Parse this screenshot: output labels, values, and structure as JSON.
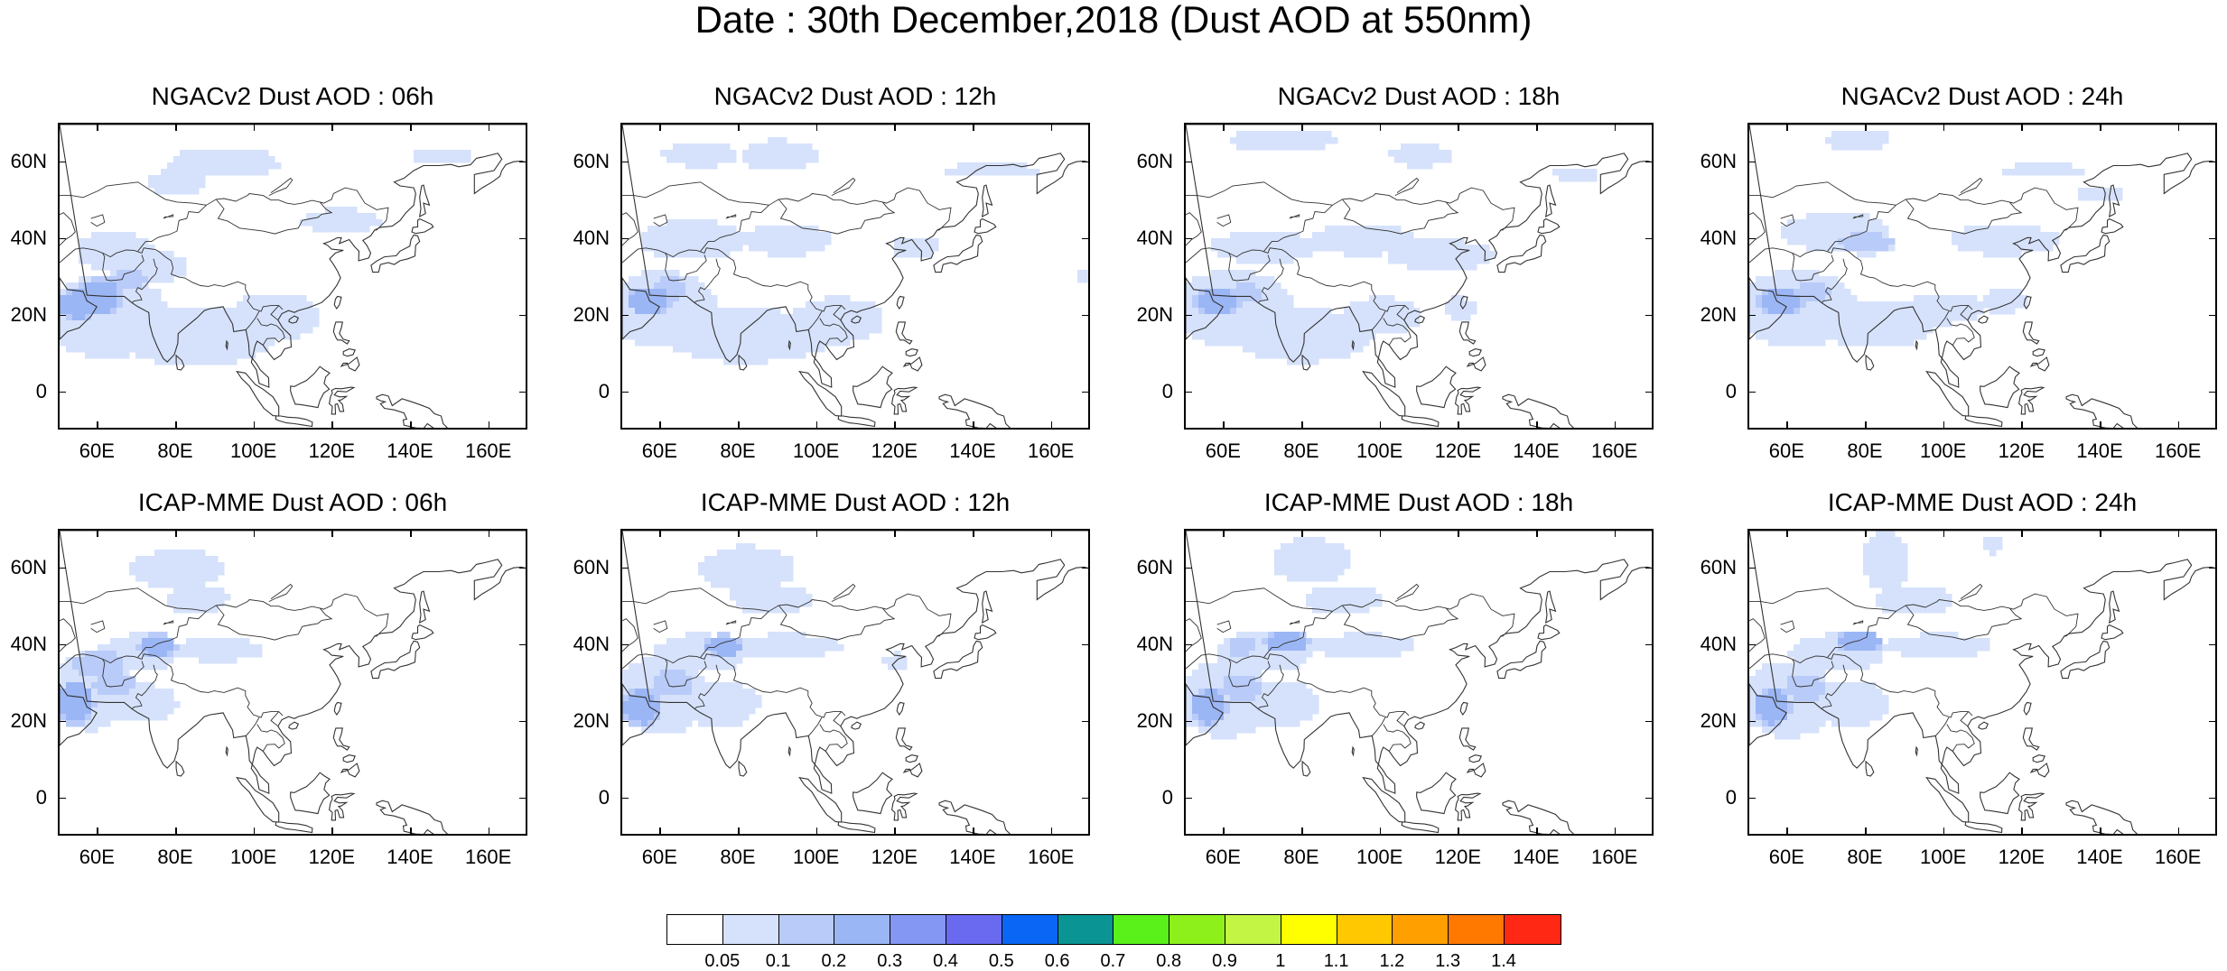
{
  "figure": {
    "title": "Date : 30th December,2018 (Dust AOD at 550nm)"
  },
  "chart_data": {
    "type": "map-panels",
    "lat_labels": [
      "60N",
      "40N",
      "20N",
      "0"
    ],
    "lon_labels": [
      "60E",
      "80E",
      "100E",
      "120E",
      "140E",
      "160E"
    ],
    "lat_range": [
      -10,
      70
    ],
    "lon_range": [
      50,
      170
    ],
    "panels": [
      {
        "title": "NGACv2 Dust AOD : 06h",
        "model": "NGACv2",
        "hour": "06h"
      },
      {
        "title": "NGACv2 Dust AOD : 12h",
        "model": "NGACv2",
        "hour": "12h"
      },
      {
        "title": "NGACv2 Dust AOD : 18h",
        "model": "NGACv2",
        "hour": "18h"
      },
      {
        "title": "NGACv2 Dust AOD : 24h",
        "model": "NGACv2",
        "hour": "24h"
      },
      {
        "title": "ICAP-MME Dust AOD : 06h",
        "model": "ICAP-MME",
        "hour": "06h"
      },
      {
        "title": "ICAP-MME Dust AOD : 12h",
        "model": "ICAP-MME",
        "hour": "12h"
      },
      {
        "title": "ICAP-MME Dust AOD : 18h",
        "model": "ICAP-MME",
        "hour": "18h"
      },
      {
        "title": "ICAP-MME Dust AOD : 24h",
        "model": "ICAP-MME",
        "hour": "24h"
      }
    ],
    "colorbar": {
      "labels": [
        "0.05",
        "0.1",
        "0.2",
        "0.3",
        "0.4",
        "0.5",
        "0.6",
        "0.7",
        "0.8",
        "0.9",
        "1",
        "1.1",
        "1.2",
        "1.3",
        "1.4"
      ],
      "colors": [
        "#ffffff",
        "#d6e2fb",
        "#b9cbf8",
        "#9bb6f5",
        "#8497f3",
        "#6a6af0",
        "#0a66f5",
        "#0a9494",
        "#5af01a",
        "#8ef01a",
        "#c3f545",
        "#ffff00",
        "#ffc800",
        "#ffa000",
        "#ff7800",
        "#ff2814"
      ]
    }
  }
}
